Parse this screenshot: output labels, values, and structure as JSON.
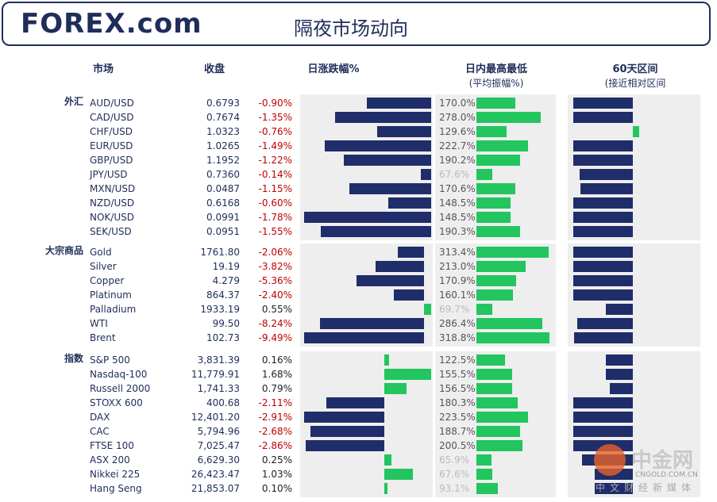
{
  "header": {
    "logo": "FOREX.com",
    "title": "隔夜市场动向"
  },
  "columns": {
    "market": "市场",
    "close": "收盘",
    "change": "日涨跌幅%",
    "range_day": "日内最高最低",
    "range_day_sub": "(平均振幅%)",
    "range_60": "60天区间",
    "range_60_sub": "(接近相对区间"
  },
  "sections": [
    {
      "label": "外汇",
      "rows": [
        {
          "name": "AUD/USD",
          "close": "0.6793",
          "change": -0.9,
          "change_label": "-0.90%",
          "amplitude": 170.0,
          "amplitude_label": "170.0%",
          "position": -47
        },
        {
          "name": "CAD/USD",
          "close": "0.7674",
          "change": -1.35,
          "change_label": "-1.35%",
          "amplitude": 278.0,
          "amplitude_label": "278.0%",
          "position": -47
        },
        {
          "name": "CHF/USD",
          "close": "1.0323",
          "change": -0.76,
          "change_label": "-0.76%",
          "amplitude": 129.6,
          "amplitude_label": "129.6%",
          "position": 5
        },
        {
          "name": "EUR/USD",
          "close": "1.0265",
          "change": -1.49,
          "change_label": "-1.49%",
          "amplitude": 222.7,
          "amplitude_label": "222.7%",
          "position": -47
        },
        {
          "name": "GBP/USD",
          "close": "1.1952",
          "change": -1.22,
          "change_label": "-1.22%",
          "amplitude": 190.2,
          "amplitude_label": "190.2%",
          "position": -47
        },
        {
          "name": "JPY/USD",
          "close": "0.7360",
          "change": -0.14,
          "change_label": "-0.14%",
          "amplitude": 67.6,
          "amplitude_label": "67.6%",
          "position": -42
        },
        {
          "name": "MXN/USD",
          "close": "0.0487",
          "change": -1.15,
          "change_label": "-1.15%",
          "amplitude": 170.6,
          "amplitude_label": "170.6%",
          "position": -41
        },
        {
          "name": "NZD/USD",
          "close": "0.6168",
          "change": -0.6,
          "change_label": "-0.60%",
          "amplitude": 148.5,
          "amplitude_label": "148.5%",
          "position": -47
        },
        {
          "name": "NOK/USD",
          "close": "0.0991",
          "change": -1.78,
          "change_label": "-1.78%",
          "amplitude": 148.5,
          "amplitude_label": "148.5%",
          "position": -47
        },
        {
          "name": "SEK/USD",
          "close": "0.0951",
          "change": -1.55,
          "change_label": "-1.55%",
          "amplitude": 190.3,
          "amplitude_label": "190.3%",
          "position": -47
        }
      ]
    },
    {
      "label": "大宗商品",
      "rows": [
        {
          "name": "Gold",
          "close": "1761.80",
          "change": -2.06,
          "change_label": "-2.06%",
          "amplitude": 313.4,
          "amplitude_label": "313.4%",
          "position": -47
        },
        {
          "name": "Silver",
          "close": "19.19",
          "change": -3.82,
          "change_label": "-3.82%",
          "amplitude": 213.0,
          "amplitude_label": "213.0%",
          "position": -47
        },
        {
          "name": "Copper",
          "close": "4.279",
          "change": -5.36,
          "change_label": "-5.36%",
          "amplitude": 170.9,
          "amplitude_label": "170.9%",
          "position": -47
        },
        {
          "name": "Platinum",
          "close": "864.37",
          "change": -2.4,
          "change_label": "-2.40%",
          "amplitude": 160.1,
          "amplitude_label": "160.1%",
          "position": -47
        },
        {
          "name": "Palladium",
          "close": "1933.19",
          "change": 0.55,
          "change_label": "0.55%",
          "amplitude": 69.7,
          "amplitude_label": "69.7%",
          "position": -21
        },
        {
          "name": "WTI",
          "close": "99.50",
          "change": -8.24,
          "change_label": "-8.24%",
          "amplitude": 286.4,
          "amplitude_label": "286.4%",
          "position": -44
        },
        {
          "name": "Brent",
          "close": "102.73",
          "change": -9.49,
          "change_label": "-9.49%",
          "amplitude": 318.8,
          "amplitude_label": "318.8%",
          "position": -46
        }
      ]
    },
    {
      "label": "指数",
      "rows": [
        {
          "name": "S&P 500",
          "close": "3,831.39",
          "change": 0.16,
          "change_label": "0.16%",
          "amplitude": 122.5,
          "amplitude_label": "122.5%",
          "position": -21
        },
        {
          "name": "Nasdaq-100",
          "close": "11,779.91",
          "change": 1.68,
          "change_label": "1.68%",
          "amplitude": 155.5,
          "amplitude_label": "155.5%",
          "position": -21
        },
        {
          "name": "Russell 2000",
          "close": "1,741.33",
          "change": 0.79,
          "change_label": "0.79%",
          "amplitude": 156.5,
          "amplitude_label": "156.5%",
          "position": -18
        },
        {
          "name": "STOXX 600",
          "close": "400.68",
          "change": -2.11,
          "change_label": "-2.11%",
          "amplitude": 180.3,
          "amplitude_label": "180.3%",
          "position": -47
        },
        {
          "name": "DAX",
          "close": "12,401.20",
          "change": -2.91,
          "change_label": "-2.91%",
          "amplitude": 223.5,
          "amplitude_label": "223.5%",
          "position": -47
        },
        {
          "name": "CAC",
          "close": "5,794.96",
          "change": -2.68,
          "change_label": "-2.68%",
          "amplitude": 188.7,
          "amplitude_label": "188.7%",
          "position": -47
        },
        {
          "name": "FTSE 100",
          "close": "7,025.47",
          "change": -2.86,
          "change_label": "-2.86%",
          "amplitude": 200.5,
          "amplitude_label": "200.5%",
          "position": -47
        },
        {
          "name": "ASX 200",
          "close": "6,629.30",
          "change": 0.25,
          "change_label": "0.25%",
          "amplitude": 65.9,
          "amplitude_label": "65.9%",
          "position": -40
        },
        {
          "name": "Nikkei 225",
          "close": "26,423.47",
          "change": 1.03,
          "change_label": "1.03%",
          "amplitude": 67.6,
          "amplitude_label": "67.6%",
          "position": -30
        },
        {
          "name": "Hang Seng",
          "close": "21,853.07",
          "change": 0.1,
          "change_label": "0.10%",
          "amplitude": 93.1,
          "amplitude_label": "93.1%",
          "position": -30
        }
      ]
    }
  ],
  "watermark": {
    "name": "中金网",
    "domain": "CNGOLD.COM.CN",
    "slogan": "中文财经新媒体"
  }
}
